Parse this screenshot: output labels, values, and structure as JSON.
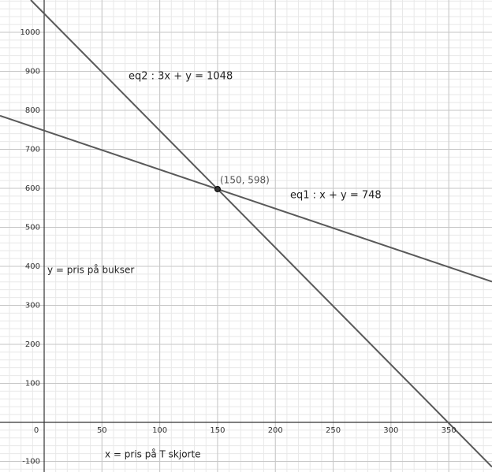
{
  "chart_data": {
    "type": "line",
    "xlim": [
      -38.2,
      387.4
    ],
    "ylim": [
      -127.3,
      1082.8
    ],
    "xticks": [
      0,
      50,
      100,
      150,
      200,
      250,
      300,
      350
    ],
    "yticks": [
      -100,
      100,
      200,
      300,
      400,
      500,
      600,
      700,
      800,
      900,
      1000
    ],
    "grid": true,
    "series": [
      {
        "name": "eq1 : x + y = 748",
        "color": "#595959",
        "x": [
          -38.2,
          387.4
        ],
        "values": [
          786.2,
          360.6
        ]
      },
      {
        "name": "eq2 : 3x + y = 1048",
        "color": "#595959",
        "x": [
          -11.6,
          387.4
        ],
        "values": [
          1082.8,
          -114.2
        ]
      }
    ],
    "point": {
      "label": "(150, 598)",
      "x": 150,
      "y": 598,
      "color": "#333333"
    },
    "xlabel": "x = pris på T skjorte",
    "ylabel": "y = pris på bukser"
  }
}
